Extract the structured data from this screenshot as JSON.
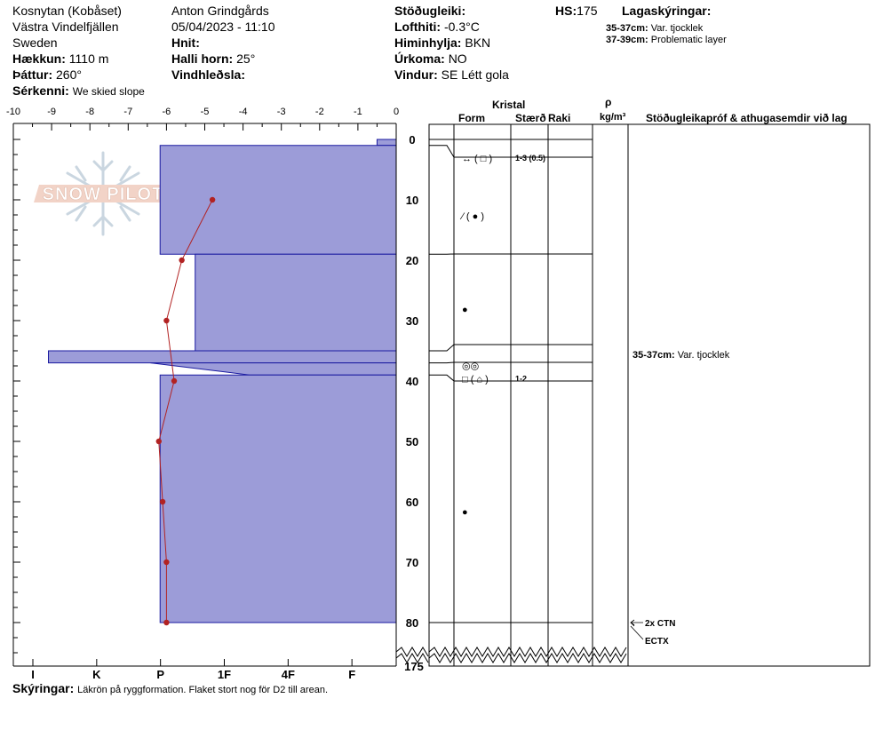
{
  "header": {
    "location": "Kosnytan (Kobåset)",
    "region": "Västra Vindelfjällen",
    "country": "Sweden",
    "elevation_label": "Hækkun:",
    "elevation_value": "1110 m",
    "aspect_label": "Þáttur:",
    "aspect_value": "260°",
    "features_label": "Sérkenni:",
    "features_value": "We skied slope",
    "observer": "Anton Grindgårds",
    "datetime": "05/04/2023 - 11:10",
    "coords_label": "Hnit:",
    "coords_value": "",
    "slope_label": "Halli horn:",
    "slope_value": "25°",
    "wind_loading_label": "Vindhleðsla:",
    "wind_loading_value": "",
    "stability_label": "Stöðugleiki:",
    "stability_value": "",
    "air_temp_label": "Lofthiti:",
    "air_temp_value": "-0.3°C",
    "sky_label": "Himinhylja:",
    "sky_value": "BKN",
    "precip_label": "Úrkoma:",
    "precip_value": "NO",
    "wind_label": "Vindur:",
    "wind_value": "SE Létt gola",
    "hs_label": "HS:",
    "hs_value": "175",
    "layer_notes_label": "Lagaskýringar:",
    "layer_notes": [
      {
        "range": "35-37cm:",
        "text": "Var. tjocklek"
      },
      {
        "range": "37-39cm:",
        "text": "Problematic layer"
      }
    ]
  },
  "logo_text": "SNOW PILOT",
  "columns": {
    "crystal": "Kristal",
    "form": "Form",
    "size": "Stærð",
    "moisture": "Raki",
    "density_symbol": "ρ",
    "density_unit": "kg/m³",
    "tests": "Stöðugleikapróf & athugasemdir við lag"
  },
  "comment_label": "Skýringar:",
  "comment_value": "Läkrön på ryggformation. Flaket stort nog för D2 till arean.",
  "chart_data": {
    "type": "area",
    "temp_axis": {
      "range": [
        -10,
        0
      ],
      "ticks": [
        "-10",
        "-9",
        "-8",
        "-7",
        "-6",
        "-5",
        "-4",
        "-3",
        "-2",
        "-1",
        "0"
      ]
    },
    "hardness_axis": {
      "ticks": [
        "I",
        "K",
        "P",
        "1F",
        "4F",
        "F"
      ]
    },
    "depth_axis": {
      "range": [
        0,
        80
      ],
      "ticks": [
        "0",
        "10",
        "20",
        "30",
        "40",
        "50",
        "60",
        "70",
        "80"
      ],
      "bottom_label": "175"
    },
    "hardness_profile": [
      {
        "top": 0,
        "bottom": 1,
        "hardness_index": 0.3
      },
      {
        "top": 1,
        "bottom": 19,
        "hardness_index": 3.7
      },
      {
        "top": 19,
        "bottom": 35,
        "hardness_index": 3.15
      },
      {
        "top": 35,
        "bottom": 37,
        "hardness_index": 5.45
      },
      {
        "top": 37,
        "bottom": 39,
        "hardness_index": 2.3,
        "hardness_index_top": 3.85
      },
      {
        "top": 39,
        "bottom": 80,
        "hardness_index": 3.7
      }
    ],
    "temperature_profile": [
      {
        "depth": 10,
        "temp": -4.8
      },
      {
        "depth": 20,
        "temp": -5.6
      },
      {
        "depth": 30,
        "temp": -6.0
      },
      {
        "depth": 40,
        "temp": -5.8
      },
      {
        "depth": 50,
        "temp": -6.2
      },
      {
        "depth": 60,
        "temp": -6.1
      },
      {
        "depth": 70,
        "temp": -6.0
      },
      {
        "depth": 80,
        "temp": -6.0
      }
    ],
    "layers": [
      {
        "top": 0,
        "bottom": 1,
        "form": "",
        "size": ""
      },
      {
        "top": 1,
        "bottom": 19,
        "form": "↔ ( □ )",
        "form_depth": 1.5,
        "size": "1-3 (0.5)"
      },
      {
        "top": 19,
        "bottom": 35,
        "form": "⁄ ( ● )",
        "form_depth": 11,
        "size": ""
      },
      {
        "top": 35,
        "bottom": 37,
        "form": "●",
        "form_depth": 26.5,
        "size": ""
      },
      {
        "top": 37,
        "bottom": 39,
        "form": "◎◎",
        "form_depth": 35.8,
        "size": ""
      },
      {
        "top": 39,
        "bottom": 80,
        "form": "□ ( ⌂ )",
        "form_depth": 38,
        "size": "1-2"
      },
      {
        "top": 80,
        "bottom": 80,
        "form": "●",
        "form_depth": 60,
        "size": ""
      }
    ],
    "test_notes": [
      {
        "depth": 36.5,
        "text": "35-37cm:",
        "detail": "Var. tjocklek"
      }
    ],
    "stability_tests": [
      {
        "depth": 80,
        "text": "2x CTN"
      },
      {
        "depth": 83,
        "text": "ECTX"
      }
    ]
  }
}
